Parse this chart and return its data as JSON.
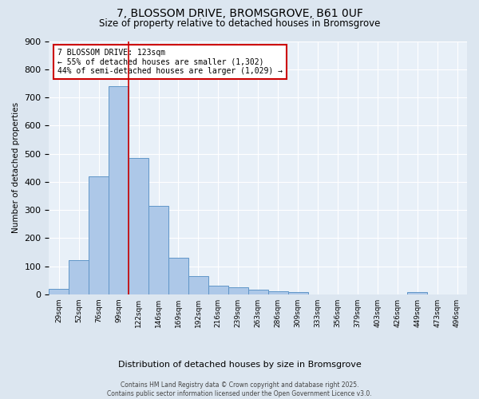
{
  "title_line1": "7, BLOSSOM DRIVE, BROMSGROVE, B61 0UF",
  "title_line2": "Size of property relative to detached houses in Bromsgrove",
  "xlabel": "Distribution of detached houses by size in Bromsgrove",
  "ylabel": "Number of detached properties",
  "annotation_line1": "7 BLOSSOM DRIVE: 123sqm",
  "annotation_line2": "← 55% of detached houses are smaller (1,302)",
  "annotation_line3": "44% of semi-detached houses are larger (1,029) →",
  "bar_color": "#adc8e8",
  "bar_edge_color": "#6096c8",
  "highlight_line_color": "#cc0000",
  "annotation_box_color": "#cc0000",
  "fig_bg_color": "#dce6f0",
  "ax_bg_color": "#e8f0f8",
  "grid_color": "#ffffff",
  "categories": [
    "29sqm",
    "52sqm",
    "76sqm",
    "99sqm",
    "122sqm",
    "146sqm",
    "169sqm",
    "192sqm",
    "216sqm",
    "239sqm",
    "263sqm",
    "286sqm",
    "309sqm",
    "333sqm",
    "356sqm",
    "379sqm",
    "403sqm",
    "426sqm",
    "449sqm",
    "473sqm",
    "496sqm"
  ],
  "values": [
    20,
    120,
    420,
    740,
    485,
    315,
    130,
    65,
    30,
    25,
    15,
    10,
    8,
    0,
    0,
    0,
    0,
    0,
    8,
    0,
    0
  ],
  "highlight_bar_index": 4,
  "ylim": [
    0,
    900
  ],
  "yticks": [
    0,
    100,
    200,
    300,
    400,
    500,
    600,
    700,
    800,
    900
  ],
  "footer_line1": "Contains HM Land Registry data © Crown copyright and database right 2025.",
  "footer_line2": "Contains public sector information licensed under the Open Government Licence v3.0."
}
